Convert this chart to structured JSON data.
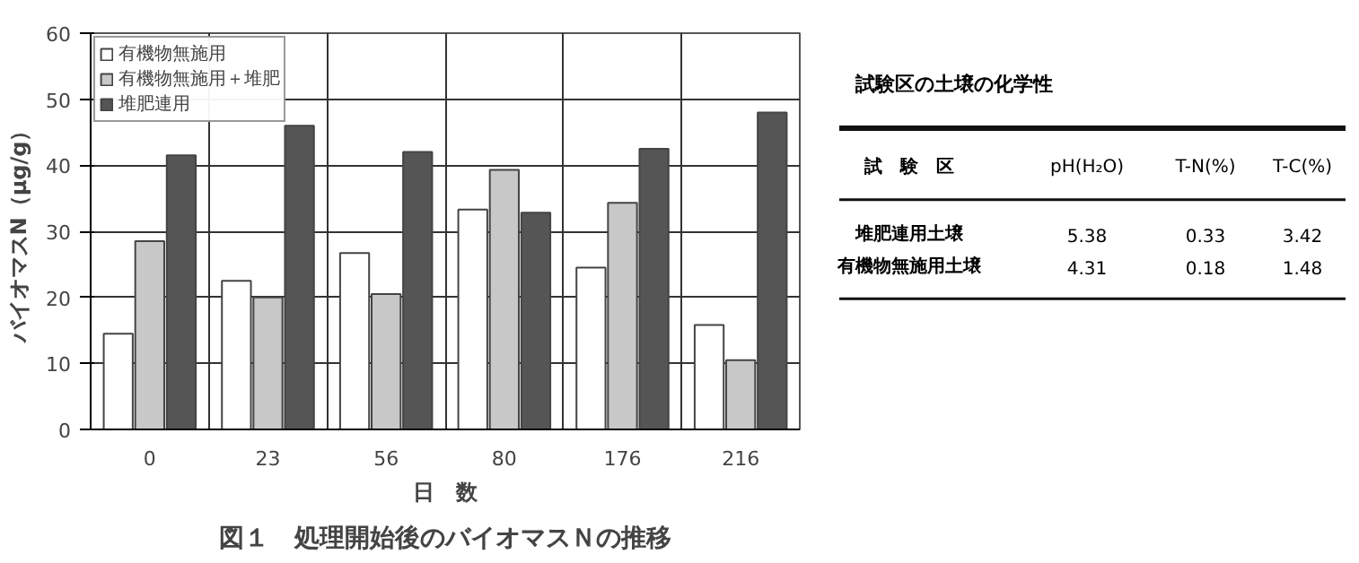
{
  "chart_data": [
    {
      "type": "bar",
      "title": "図１　処理開始後のバイオマスＮの推移",
      "xlabel": "日　数",
      "ylabel": "バイオマスN（μg/g）",
      "categories": [
        "0",
        "23",
        "56",
        "80",
        "176",
        "216"
      ],
      "series": [
        {
          "name": "有機物無施用",
          "color": "#ffffff",
          "values": [
            14.5,
            22.5,
            26.7,
            33.3,
            24.5,
            15.8
          ]
        },
        {
          "name": "有機物無施用＋堆肥",
          "color": "#c8c8c8",
          "values": [
            28.5,
            20.0,
            20.5,
            39.3,
            34.3,
            10.5
          ]
        },
        {
          "name": "堆肥連用",
          "color": "#555555",
          "values": [
            41.5,
            46.0,
            42.0,
            32.8,
            42.5,
            48.0
          ]
        }
      ],
      "ylim": [
        0,
        60
      ],
      "yticks": [
        0,
        10,
        20,
        30,
        40,
        50,
        60
      ],
      "grid": true,
      "legend": "top left"
    },
    {
      "type": "other",
      "title": "試験区の土壌の化学性",
      "annotations": [
        "試　験　区",
        "pH(H₂O)",
        "T-N(%)",
        "T-C(%)",
        "堆肥連用土壌",
        "5.38",
        "0.33",
        "3.42",
        "有機物無施用土壌",
        "4.31",
        "0.18",
        "1.48"
      ]
    }
  ]
}
